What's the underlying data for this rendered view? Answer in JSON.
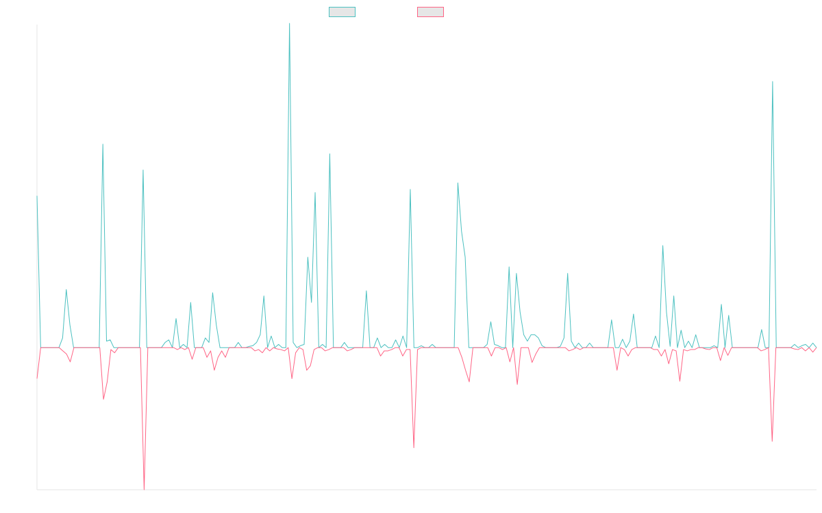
{
  "chart_data": {
    "type": "line",
    "title": "",
    "xlabel": "",
    "ylabel": "",
    "ylim": [
      -220,
      500
    ],
    "grid": false,
    "legend_position": "top",
    "series": [
      {
        "name": "",
        "color": "#4bc0c0",
        "values": [
          235,
          0,
          0,
          0,
          0,
          0,
          0,
          15,
          90,
          35,
          0,
          0,
          0,
          0,
          0,
          0,
          0,
          0,
          315,
          10,
          12,
          0,
          0,
          0,
          0,
          0,
          0,
          0,
          0,
          275,
          0,
          0,
          0,
          0,
          0,
          8,
          12,
          0,
          45,
          0,
          5,
          0,
          70,
          0,
          0,
          0,
          15,
          8,
          85,
          35,
          0,
          0,
          0,
          0,
          0,
          8,
          0,
          0,
          2,
          3,
          8,
          20,
          80,
          0,
          18,
          0,
          5,
          0,
          0,
          502,
          8,
          0,
          3,
          5,
          140,
          70,
          240,
          0,
          5,
          0,
          300,
          0,
          0,
          0,
          8,
          0,
          0,
          0,
          0,
          0,
          88,
          0,
          0,
          15,
          0,
          5,
          0,
          0,
          12,
          0,
          18,
          0,
          245,
          0,
          0,
          3,
          0,
          0,
          5,
          0,
          0,
          0,
          0,
          0,
          0,
          255,
          180,
          140,
          0,
          0,
          0,
          0,
          0,
          5,
          40,
          5,
          3,
          0,
          0,
          125,
          0,
          115,
          55,
          20,
          10,
          20,
          20,
          15,
          3,
          0,
          0,
          0,
          0,
          2,
          15,
          115,
          10,
          0,
          7,
          0,
          0,
          7,
          0,
          0,
          0,
          0,
          0,
          43,
          0,
          0,
          13,
          0,
          10,
          52,
          0,
          0,
          0,
          0,
          0,
          18,
          0,
          158,
          55,
          2,
          80,
          0,
          27,
          0,
          10,
          0,
          20,
          0,
          0,
          0,
          0,
          3,
          0,
          67,
          0,
          50,
          0,
          0,
          0,
          0,
          0,
          0,
          0,
          0,
          28,
          0,
          0,
          412,
          0,
          0,
          0,
          0,
          0,
          5,
          0,
          3,
          5,
          0,
          7,
          0
        ]
      },
      {
        "name": "",
        "color": "#ff6384",
        "values": [
          -48,
          0,
          0,
          0,
          0,
          0,
          0,
          -5,
          -10,
          -22,
          0,
          0,
          0,
          0,
          0,
          0,
          0,
          0,
          -80,
          -53,
          -3,
          -8,
          0,
          0,
          0,
          0,
          0,
          0,
          0,
          -220,
          0,
          0,
          0,
          0,
          0,
          0,
          0,
          0,
          -3,
          0,
          -3,
          0,
          -18,
          0,
          0,
          0,
          -15,
          -5,
          -35,
          -15,
          -5,
          -15,
          0,
          0,
          0,
          0,
          0,
          0,
          0,
          -5,
          -3,
          -8,
          0,
          -5,
          0,
          -2,
          -3,
          -5,
          0,
          -48,
          -8,
          0,
          -3,
          -35,
          -28,
          -3,
          0,
          0,
          -5,
          -3,
          0,
          0,
          0,
          0,
          -5,
          -3,
          0,
          0,
          0,
          0,
          0,
          0,
          0,
          -13,
          -5,
          -5,
          -3,
          0,
          0,
          -13,
          -3,
          -3,
          -155,
          -3,
          0,
          0,
          0,
          0,
          0,
          0,
          0,
          0,
          0,
          0,
          0,
          -15,
          -35,
          -53,
          0,
          0,
          0,
          0,
          0,
          -13,
          0,
          0,
          -3,
          0,
          -22,
          0,
          -57,
          0,
          0,
          0,
          -23,
          -10,
          0,
          0,
          0,
          0,
          0,
          0,
          0,
          0,
          -5,
          -3,
          0,
          -3,
          0,
          0,
          0,
          0,
          0,
          0,
          0,
          0,
          0,
          -35,
          0,
          -3,
          -13,
          -3,
          0,
          0,
          0,
          0,
          0,
          -3,
          -3,
          -13,
          -3,
          -25,
          -3,
          -5,
          -52,
          -3,
          -5,
          -3,
          -3,
          0,
          0,
          -2,
          -3,
          0,
          0,
          -20,
          0,
          -12,
          0,
          0,
          0,
          0,
          0,
          0,
          0,
          0,
          -5,
          -3,
          0,
          -145,
          0,
          0,
          0,
          0,
          0,
          -2,
          -3,
          0,
          -5,
          0,
          -7,
          0
        ]
      }
    ]
  }
}
